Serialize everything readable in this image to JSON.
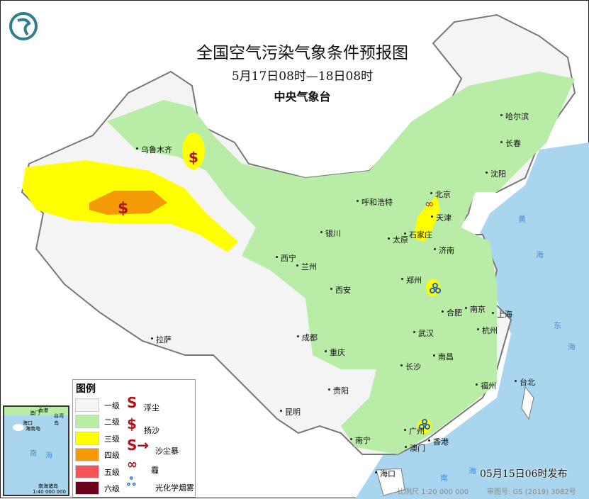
{
  "header": {
    "title": "全国空气污染气象条件预报图",
    "period": "5月17日08时—18日08时",
    "issuer": "中央气象台",
    "logo": "cma-dragon-logo"
  },
  "legend": {
    "title": "图例",
    "levels": [
      {
        "label": "一级",
        "color": "#f4f4f4"
      },
      {
        "label": "二级",
        "color": "#b9eca6"
      },
      {
        "label": "三级",
        "color": "#ffff00"
      },
      {
        "label": "四级",
        "color": "#f39a06"
      },
      {
        "label": "五级",
        "color": "#f6535b"
      },
      {
        "label": "六级",
        "color": "#6b001c"
      }
    ],
    "symbols": [
      {
        "label": "浮尘",
        "icon": "floating-dust-icon"
      },
      {
        "label": "扬沙",
        "icon": "blowing-sand-icon"
      },
      {
        "label": "沙尘暴",
        "icon": "sandstorm-icon"
      },
      {
        "label": "霾",
        "icon": "haze-icon"
      },
      {
        "label": "光化学烟雾",
        "icon": "photochemical-smog-icon"
      }
    ]
  },
  "cities": [
    "乌鲁木齐",
    "哈尔滨",
    "长春",
    "沈阳",
    "北京",
    "天津",
    "呼和浩特",
    "太原",
    "石家庄",
    "济南",
    "银川",
    "西宁",
    "兰州",
    "郑州",
    "西安",
    "合肥",
    "南京",
    "上海",
    "杭州",
    "武汉",
    "成都",
    "重庆",
    "拉萨",
    "长沙",
    "南昌",
    "福州",
    "台北",
    "贵阳",
    "昆明",
    "南宁",
    "广州",
    "澳门",
    "香港",
    "海口"
  ],
  "seas": [
    "黄",
    "海",
    "东",
    "海",
    "南",
    "海"
  ],
  "inset": {
    "labels": [
      "澳门",
      "香港",
      "台湾岛",
      "海口",
      "海南岛",
      "南",
      "海",
      "南海诸岛"
    ],
    "scale": "1:40 000 000"
  },
  "footer": {
    "issued": "05月15日06时发布",
    "scale": "比例尺 1:20 000 000",
    "review": "审图号: GS (2019) 3082号"
  }
}
